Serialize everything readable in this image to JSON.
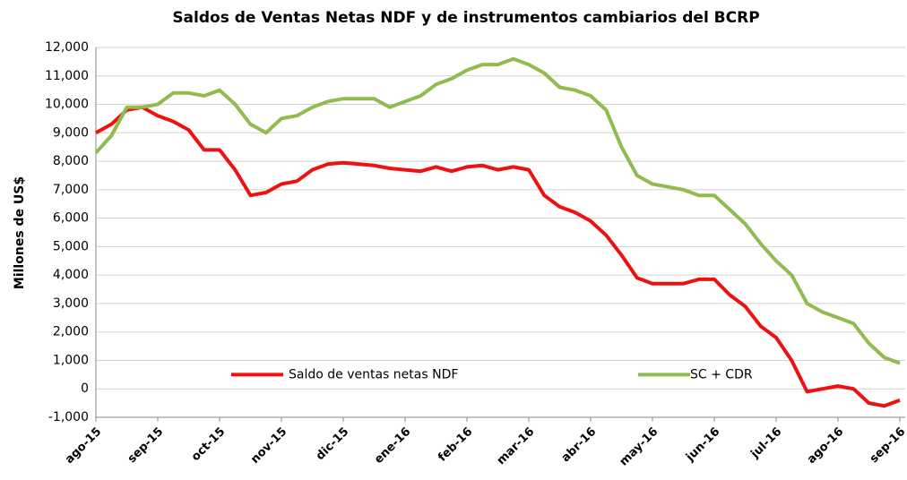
{
  "chart_data": {
    "type": "line",
    "title": "Saldos de Ventas Netas NDF y de instrumentos cambiarios del BCRP",
    "y_label": "Millones de US$",
    "categories": [
      "ago-15",
      null,
      null,
      null,
      "sep-15",
      null,
      null,
      null,
      "oct-15",
      null,
      null,
      null,
      "nov-15",
      null,
      null,
      null,
      "dic-15",
      null,
      null,
      null,
      "ene-16",
      null,
      null,
      null,
      "feb-16",
      null,
      null,
      null,
      "mar-16",
      null,
      null,
      null,
      "abr-16",
      null,
      null,
      null,
      "may-16",
      null,
      null,
      null,
      "jun-16",
      null,
      null,
      null,
      "jul-16",
      null,
      null,
      null,
      "ago-16",
      null,
      null,
      null,
      "sep-16"
    ],
    "series": [
      {
        "name": "Saldo de ventas netas NDF",
        "color": "#ee1111",
        "values": [
          9000,
          9300,
          9800,
          9900,
          9600,
          9400,
          9100,
          8400,
          8400,
          7700,
          6800,
          6900,
          7200,
          7300,
          7700,
          7900,
          7950,
          7900,
          7850,
          7750,
          7700,
          7650,
          7800,
          7650,
          7800,
          7850,
          7700,
          7800,
          7700,
          6800,
          6400,
          6200,
          5900,
          5400,
          4700,
          3900,
          3700,
          3700,
          3700,
          3850,
          3850,
          3300,
          2900,
          2200,
          1800,
          1000,
          -100,
          0,
          100,
          0,
          -500,
          -600,
          -400
        ]
      },
      {
        "name": "SC + CDR",
        "color": "#92bb4f",
        "values": [
          8300,
          8900,
          9900,
          9900,
          10000,
          10400,
          10400,
          10300,
          10500,
          10000,
          9300,
          9000,
          9500,
          9600,
          9900,
          10100,
          10200,
          10200,
          10200,
          9900,
          10100,
          10300,
          10700,
          10900,
          11200,
          11400,
          11400,
          11600,
          11400,
          11100,
          10600,
          10500,
          10300,
          9800,
          8500,
          7500,
          7200,
          7100,
          7000,
          6800,
          6800,
          6300,
          5800,
          5100,
          4500,
          4000,
          3000,
          2700,
          2500,
          2300,
          1600,
          1100,
          900
        ]
      }
    ],
    "ylim": [
      -1000,
      12000
    ],
    "yticks": [
      {
        "value": -1000,
        "label": "-1,000"
      },
      0,
      {
        "value": 1000,
        "label": "1,000"
      },
      {
        "value": 2000,
        "label": "2,000"
      },
      {
        "value": 3000,
        "label": "3,000"
      },
      {
        "value": 4000,
        "label": "4,000"
      },
      {
        "value": 5000,
        "label": "5,000"
      },
      {
        "value": 6000,
        "label": "6,000"
      },
      {
        "value": 7000,
        "label": "7,000"
      },
      {
        "value": 8000,
        "label": "8,000"
      },
      {
        "value": 9000,
        "label": "9,000"
      },
      {
        "value": 10000,
        "label": "10,000"
      },
      {
        "value": 11000,
        "label": "11,000"
      },
      {
        "value": 12000,
        "label": "12,000"
      }
    ],
    "grid": true,
    "legend": "bottom"
  }
}
